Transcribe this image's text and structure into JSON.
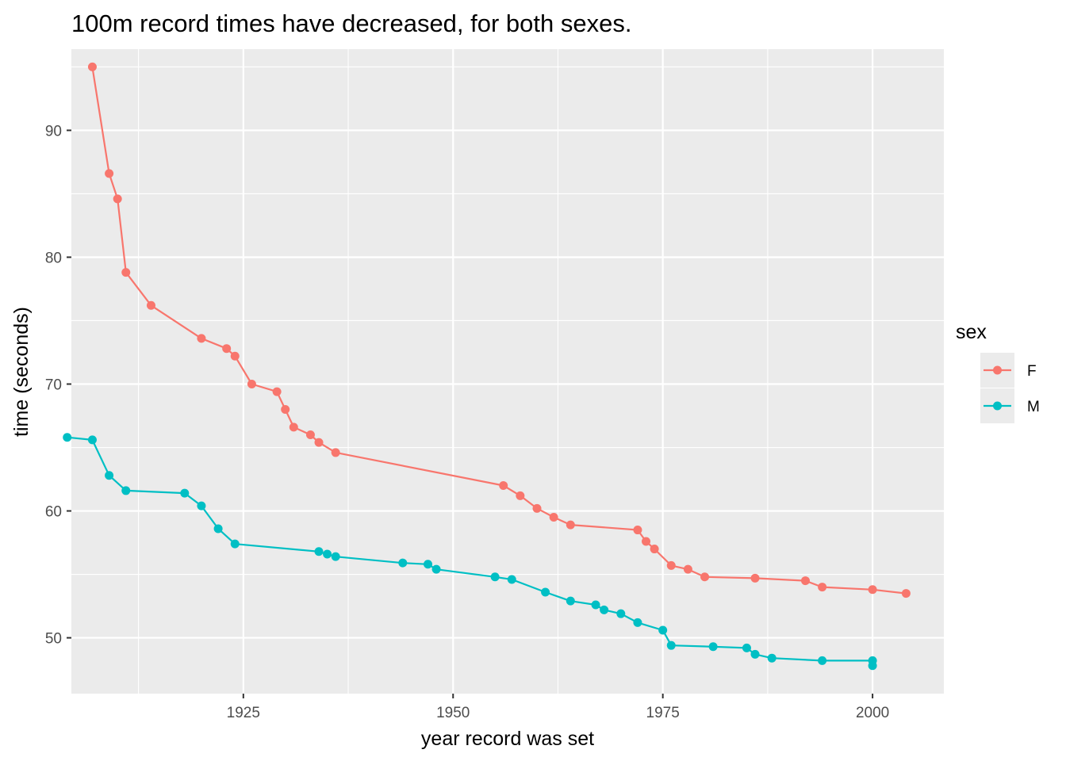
{
  "chart_data": {
    "type": "line",
    "title": "100m record times have decreased, for both sexes.",
    "xlabel": "year record was set",
    "ylabel": "time (seconds)",
    "xlim": [
      1904.5,
      2008.5
    ],
    "ylim": [
      45.6,
      96.4
    ],
    "x_ticks": [
      1925,
      1950,
      1975,
      2000
    ],
    "y_ticks": [
      50,
      60,
      70,
      80,
      90
    ],
    "grid": true,
    "legend": {
      "title": "sex",
      "position": "right"
    },
    "series": [
      {
        "name": "F",
        "color": "#F8766D",
        "x": [
          1907,
          1909,
          1910,
          1911,
          1914,
          1920,
          1923,
          1924,
          1926,
          1929,
          1930,
          1931,
          1933,
          1934,
          1936,
          1956,
          1958,
          1960,
          1962,
          1964,
          1972,
          1973,
          1974,
          1976,
          1978,
          1980,
          1986,
          1992,
          1994,
          2000,
          2004
        ],
        "y": [
          95.0,
          86.6,
          84.6,
          78.8,
          76.2,
          73.6,
          72.8,
          72.2,
          70.0,
          69.4,
          68.0,
          66.6,
          66.0,
          65.4,
          64.6,
          62.0,
          61.2,
          60.2,
          59.5,
          58.9,
          58.5,
          57.6,
          57.0,
          55.7,
          55.4,
          54.8,
          54.7,
          54.5,
          54.0,
          53.8,
          53.5
        ]
      },
      {
        "name": "M",
        "color": "#00BFC4",
        "x": [
          1904,
          1907,
          1909,
          1911,
          1918,
          1920,
          1922,
          1924,
          1934,
          1935,
          1936,
          1944,
          1947,
          1948,
          1955,
          1957,
          1961,
          1964,
          1967,
          1968,
          1970,
          1972,
          1975,
          1976,
          1981,
          1985,
          1986,
          1988,
          1994,
          2000,
          2000
        ],
        "y": [
          65.8,
          65.6,
          62.8,
          61.6,
          61.4,
          60.4,
          58.6,
          57.4,
          56.8,
          56.6,
          56.4,
          55.9,
          55.8,
          55.4,
          54.8,
          54.6,
          53.6,
          52.9,
          52.6,
          52.2,
          51.9,
          51.2,
          50.6,
          49.4,
          49.3,
          49.2,
          48.7,
          48.4,
          48.2,
          48.2,
          47.8
        ]
      }
    ]
  }
}
